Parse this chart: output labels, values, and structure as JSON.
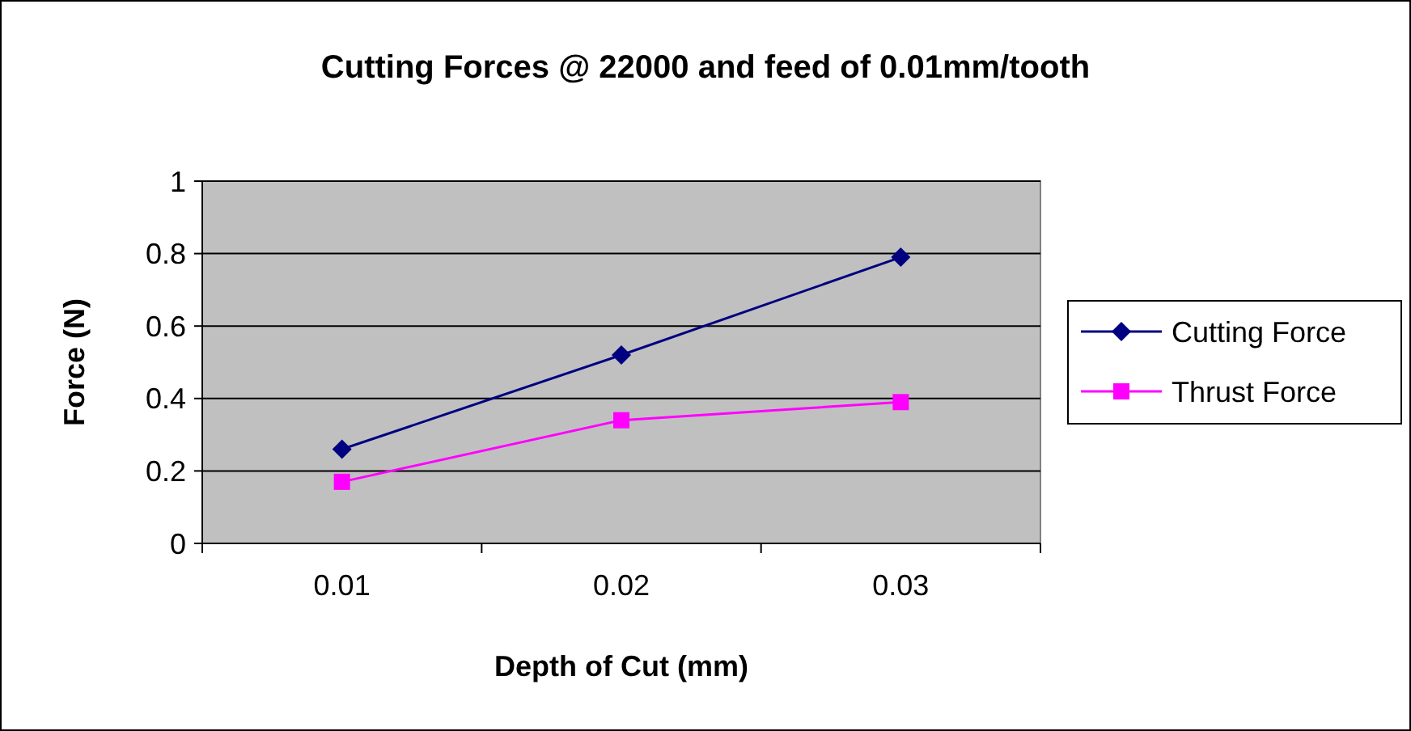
{
  "chart_data": {
    "type": "line",
    "title": "Cutting Forces @ 22000 and feed of 0.01mm/tooth",
    "xlabel": "Depth of Cut (mm)",
    "ylabel": "Force (N)",
    "categories": [
      "0.01",
      "0.02",
      "0.03"
    ],
    "series": [
      {
        "name": "Cutting Force",
        "color": "#000080",
        "marker": "diamond",
        "values": [
          0.26,
          0.52,
          0.79
        ]
      },
      {
        "name": "Thrust Force",
        "color": "#ff00ff",
        "marker": "square",
        "values": [
          0.17,
          0.34,
          0.39
        ]
      }
    ],
    "ylim": [
      0,
      1
    ],
    "yticks": [
      0,
      {
        "value": 0.2,
        "label": "0.2"
      },
      {
        "value": 0.4,
        "label": "0.4"
      },
      {
        "value": 0.6,
        "label": "0.6"
      },
      {
        "value": 0.8,
        "label": "0.8"
      },
      1
    ],
    "grid": "y",
    "legend": "right"
  }
}
